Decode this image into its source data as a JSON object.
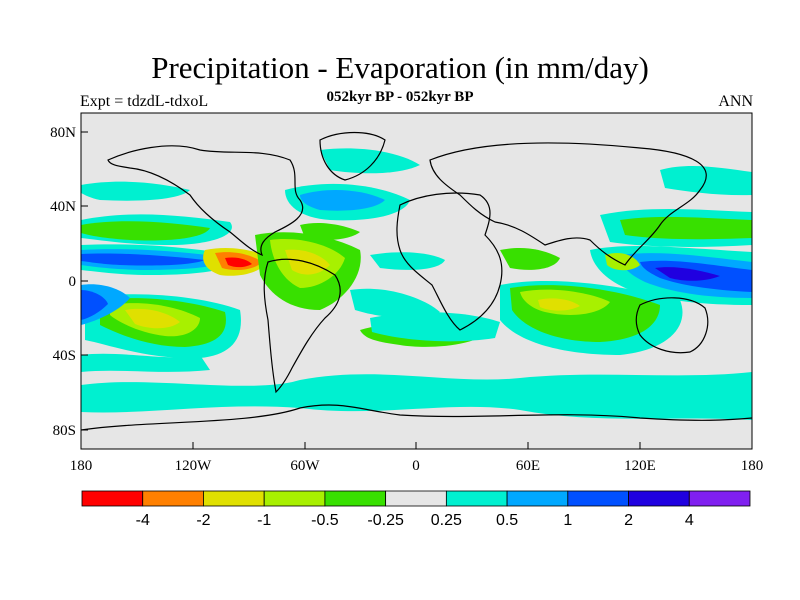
{
  "title": "Precipitation - Evaporation (in mm/day)",
  "subtitle": "052kyr BP - 052kyr BP",
  "left_label": "Expt = tdzdL-tdxoL",
  "right_label": "ANN",
  "lat_ticks": [
    "80N",
    "40N",
    "0",
    "40S",
    "80S"
  ],
  "lon_ticks": [
    "180",
    "120W",
    "60W",
    "0",
    "60E",
    "120E",
    "180"
  ],
  "colorbar": {
    "colors": [
      "#ff0000",
      "#ff8000",
      "#e0e000",
      "#a8f000",
      "#38e000",
      "#e6e6e6",
      "#00f0d0",
      "#00a8ff",
      "#0050ff",
      "#2000e0",
      "#8020f0"
    ],
    "labels": [
      "-4",
      "-2",
      "-1",
      "-0.5",
      "-0.25",
      "0.25",
      "0.5",
      "1",
      "2",
      "4"
    ]
  },
  "colors": {
    "background_field": "#e6e6e6",
    "coastline": "#000000"
  }
}
